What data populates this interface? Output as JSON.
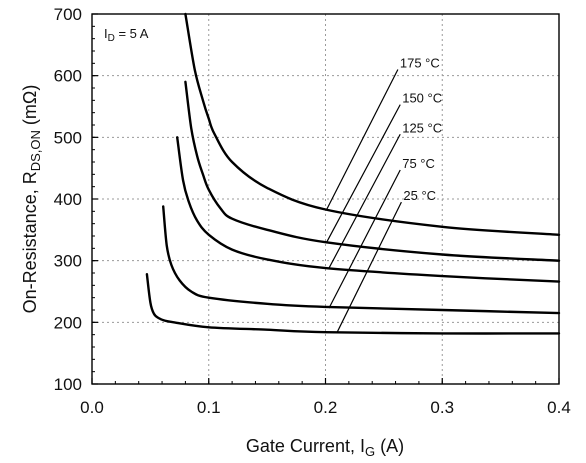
{
  "chart_data": {
    "type": "line",
    "title": "",
    "annotation": {
      "text": "I",
      "sub": "D",
      "suffix": " = 5 A"
    },
    "xlabel": {
      "text": "Gate Current, I",
      "sub": "G",
      "suffix": " (A)"
    },
    "ylabel": {
      "text": "On-Resistance, R",
      "sub": "DS,ON",
      "suffix": " (mΩ)"
    },
    "xlim": [
      0.0,
      0.4
    ],
    "ylim": [
      100,
      700
    ],
    "x_ticks": [
      0.0,
      0.1,
      0.2,
      0.3,
      0.4
    ],
    "x_tick_labels": [
      "0.0",
      "0.1",
      "0.2",
      "0.3",
      "0.4"
    ],
    "y_ticks": [
      100,
      200,
      300,
      400,
      500,
      600,
      700
    ],
    "y_tick_labels": [
      "100",
      "200",
      "300",
      "400",
      "500",
      "600",
      "700"
    ],
    "grid": true,
    "series": [
      {
        "name": "175 °C",
        "leader_from": [
          0.201,
          383
        ],
        "leader_to": [
          0.262,
          610
        ],
        "x": [
          0.08,
          0.088,
          0.095,
          0.1,
          0.105,
          0.12,
          0.15,
          0.2,
          0.3,
          0.4
        ],
        "y": [
          700,
          610,
          560,
          530,
          505,
          460,
          418,
          383,
          355,
          342
        ]
      },
      {
        "name": "150 °C",
        "leader_from": [
          0.201,
          330
        ],
        "leader_to": [
          0.264,
          553
        ],
        "x": [
          0.08,
          0.085,
          0.09,
          0.095,
          0.1,
          0.11,
          0.12,
          0.15,
          0.2,
          0.3,
          0.4
        ],
        "y": [
          590,
          515,
          470,
          440,
          415,
          385,
          368,
          350,
          330,
          310,
          300
        ]
      },
      {
        "name": "125 °C",
        "leader_from": [
          0.203,
          288
        ],
        "leader_to": [
          0.264,
          505
        ],
        "x": [
          0.073,
          0.078,
          0.083,
          0.09,
          0.1,
          0.12,
          0.15,
          0.2,
          0.3,
          0.4
        ],
        "y": [
          500,
          430,
          395,
          365,
          342,
          318,
          302,
          288,
          275,
          266
        ]
      },
      {
        "name": "75 °C",
        "leader_from": [
          0.203,
          223
        ],
        "leader_to": [
          0.264,
          447
        ],
        "x": [
          0.061,
          0.064,
          0.068,
          0.075,
          0.085,
          0.1,
          0.15,
          0.2,
          0.3,
          0.4
        ],
        "y": [
          388,
          325,
          293,
          268,
          250,
          240,
          230,
          225,
          220,
          215
        ]
      },
      {
        "name": "25 °C",
        "leader_from": [
          0.21,
          184
        ],
        "leader_to": [
          0.265,
          395
        ],
        "x": [
          0.047,
          0.05,
          0.053,
          0.057,
          0.062,
          0.07,
          0.1,
          0.15,
          0.2,
          0.3,
          0.4
        ],
        "y": [
          278,
          232,
          214,
          207,
          203,
          200,
          192,
          188,
          184,
          182,
          182
        ]
      }
    ]
  }
}
